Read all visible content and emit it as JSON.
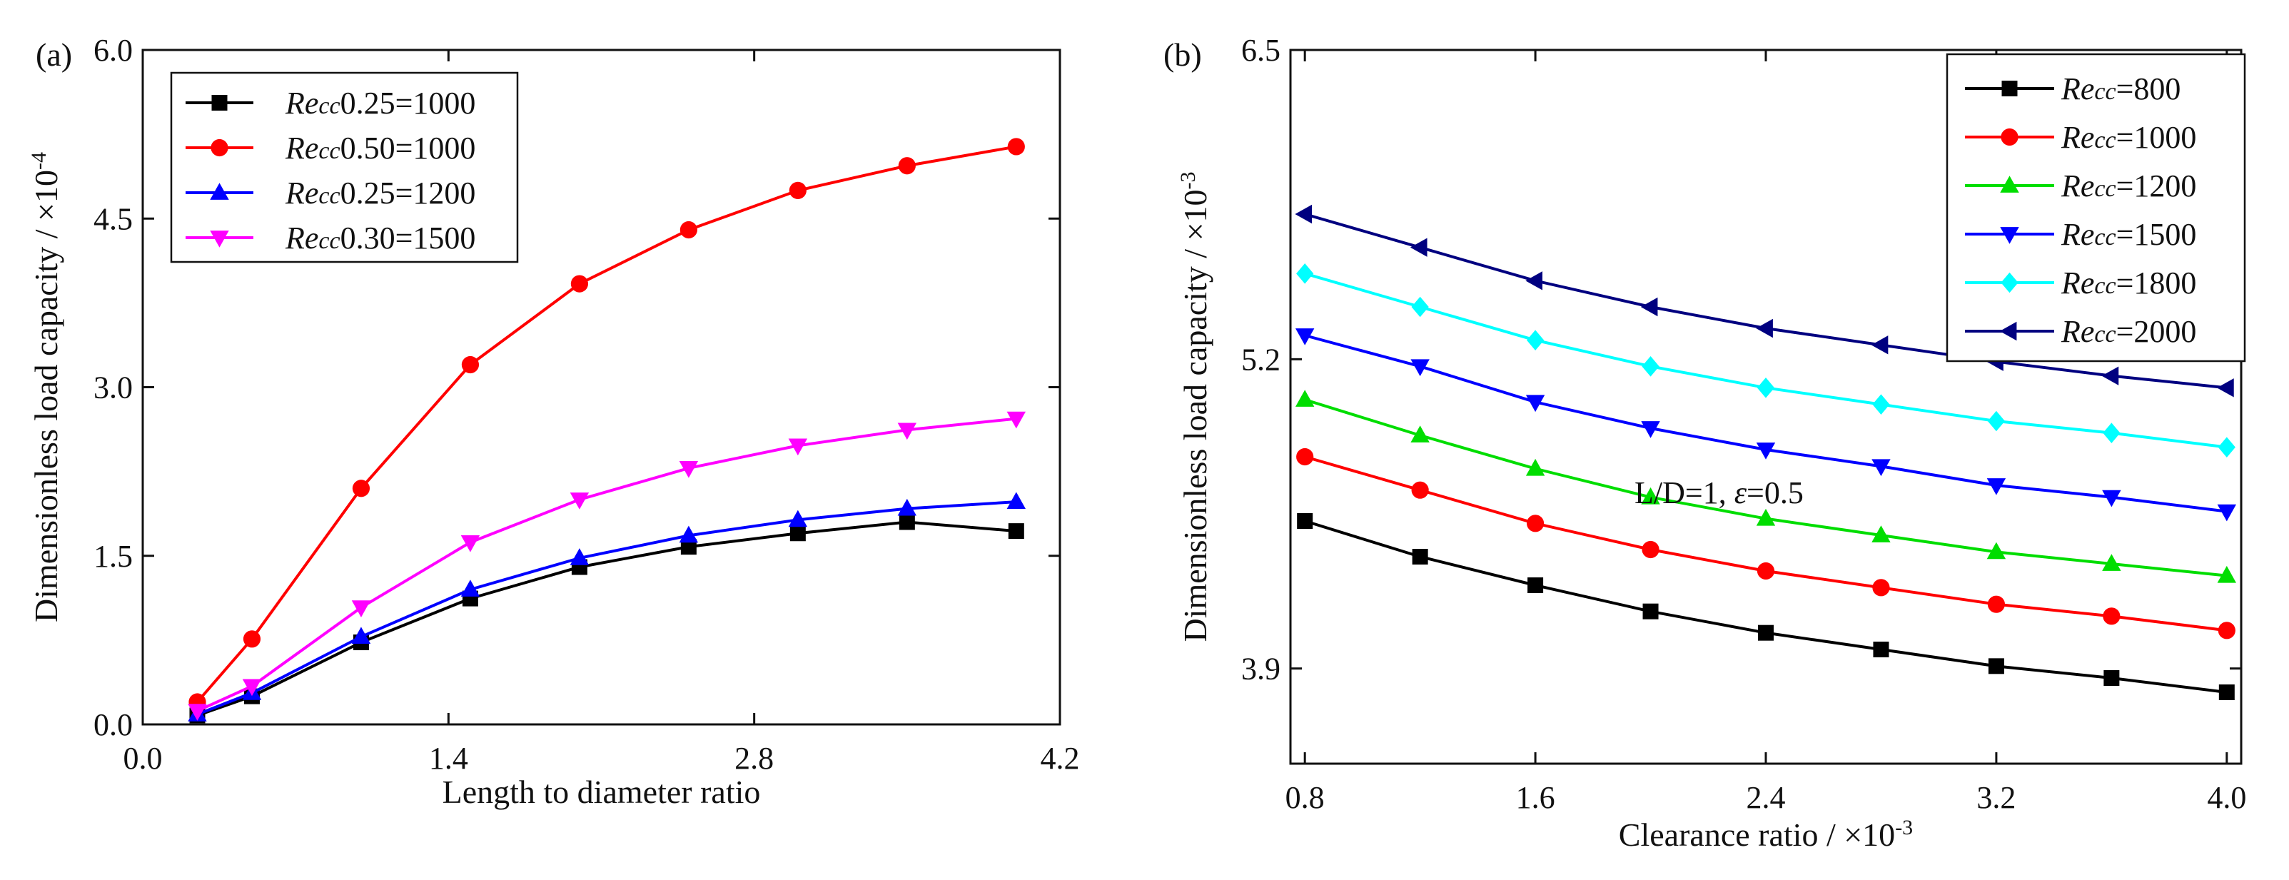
{
  "chart_data": [
    {
      "type": "line",
      "panel_label": "(a)",
      "xlabel": "Length to diameter ratio",
      "ylabel": "Dimensionless load capacity / ×10",
      "ylabel_exp": "-4",
      "xlim": [
        0.0,
        4.2
      ],
      "ylim": [
        0.0,
        6.0
      ],
      "xticks": [
        "0.0",
        "1.4",
        "2.8",
        "4.2"
      ],
      "xtick_values": [
        0.0,
        1.4,
        2.8,
        4.2
      ],
      "yticks": [
        "0.0",
        "1.5",
        "3.0",
        "4.5",
        "6.0"
      ],
      "ytick_values": [
        0.0,
        1.5,
        3.0,
        4.5,
        6.0
      ],
      "grid": false,
      "legend_position": "top-left",
      "x": [
        0.25,
        0.5,
        1.0,
        1.5,
        2.0,
        2.5,
        3.0,
        3.5,
        4.0
      ],
      "series": [
        {
          "name_prefix": "Re",
          "name_sub": "cc",
          "name_suffix": "0.25=1000",
          "color": "#000000",
          "marker": "square",
          "values": [
            0.08,
            0.25,
            0.73,
            1.12,
            1.4,
            1.58,
            1.7,
            1.8,
            1.72
          ]
        },
        {
          "name_prefix": "Re",
          "name_sub": "cc",
          "name_suffix": "0.50=1000",
          "color": "#ff0000",
          "marker": "circle",
          "values": [
            0.2,
            0.76,
            2.1,
            3.2,
            3.92,
            4.4,
            4.75,
            4.97,
            5.14
          ]
        },
        {
          "name_prefix": "Re",
          "name_sub": "cc",
          "name_suffix": "0.25=1200",
          "color": "#0000ff",
          "marker": "triangle-up",
          "values": [
            0.09,
            0.28,
            0.78,
            1.2,
            1.48,
            1.68,
            1.82,
            1.92,
            1.98
          ]
        },
        {
          "name_prefix": "Re",
          "name_sub": "cc",
          "name_suffix": "0.30=1500",
          "color": "#ff00ff",
          "marker": "triangle-down",
          "values": [
            0.12,
            0.34,
            1.04,
            1.62,
            2.0,
            2.28,
            2.48,
            2.62,
            2.72
          ]
        }
      ]
    },
    {
      "type": "line",
      "panel_label": "(b)",
      "xlabel": "Clearance ratio / ×10",
      "xlabel_exp": "-3",
      "ylabel": "Dimensionless load capacity / ×10",
      "ylabel_exp": "-3",
      "xlim": [
        0.75,
        4.05
      ],
      "ylim": [
        3.5,
        6.5
      ],
      "xticks": [
        "0.8",
        "1.6",
        "2.4",
        "3.2",
        "4.0"
      ],
      "xtick_values": [
        0.8,
        1.6,
        2.4,
        3.2,
        4.0
      ],
      "yticks": [
        "3.9",
        "5.2",
        "6.5"
      ],
      "ytick_values": [
        3.9,
        5.2,
        6.5
      ],
      "grid": false,
      "legend_position": "top-right",
      "annotation": {
        "text_prefix": "L/D=1, ",
        "epsilon": "ε",
        "text_suffix": "=0.5"
      },
      "x": [
        0.8,
        1.2,
        1.6,
        2.0,
        2.4,
        2.8,
        3.2,
        3.6,
        4.0
      ],
      "series": [
        {
          "name_prefix": "Re",
          "name_sub": "cc",
          "name_suffix": "=800",
          "color": "#000000",
          "marker": "square",
          "values": [
            4.52,
            4.37,
            4.25,
            4.14,
            4.05,
            3.98,
            3.91,
            3.86,
            3.8
          ]
        },
        {
          "name_prefix": "Re",
          "name_sub": "cc",
          "name_suffix": "=1000",
          "color": "#ff0000",
          "marker": "circle",
          "values": [
            4.79,
            4.65,
            4.51,
            4.4,
            4.31,
            4.24,
            4.17,
            4.12,
            4.06
          ]
        },
        {
          "name_prefix": "Re",
          "name_sub": "cc",
          "name_suffix": "=1200",
          "color": "#00dd00",
          "marker": "triangle-up",
          "values": [
            5.03,
            4.88,
            4.74,
            4.62,
            4.53,
            4.46,
            4.39,
            4.34,
            4.29
          ]
        },
        {
          "name_prefix": "Re",
          "name_sub": "cc",
          "name_suffix": "=1500",
          "color": "#0000ff",
          "marker": "triangle-down",
          "values": [
            5.3,
            5.17,
            5.02,
            4.91,
            4.82,
            4.75,
            4.67,
            4.62,
            4.56
          ]
        },
        {
          "name_prefix": "Re",
          "name_sub": "cc",
          "name_suffix": "=1800",
          "color": "#00ffff",
          "marker": "diamond",
          "values": [
            5.56,
            5.42,
            5.28,
            5.17,
            5.08,
            5.01,
            4.94,
            4.89,
            4.83
          ]
        },
        {
          "name_prefix": "Re",
          "name_sub": "cc",
          "name_suffix": "=2000",
          "color": "#000080",
          "marker": "triangle-left",
          "values": [
            5.81,
            5.67,
            5.53,
            5.42,
            5.33,
            5.26,
            5.19,
            5.13,
            5.08
          ]
        }
      ]
    }
  ]
}
